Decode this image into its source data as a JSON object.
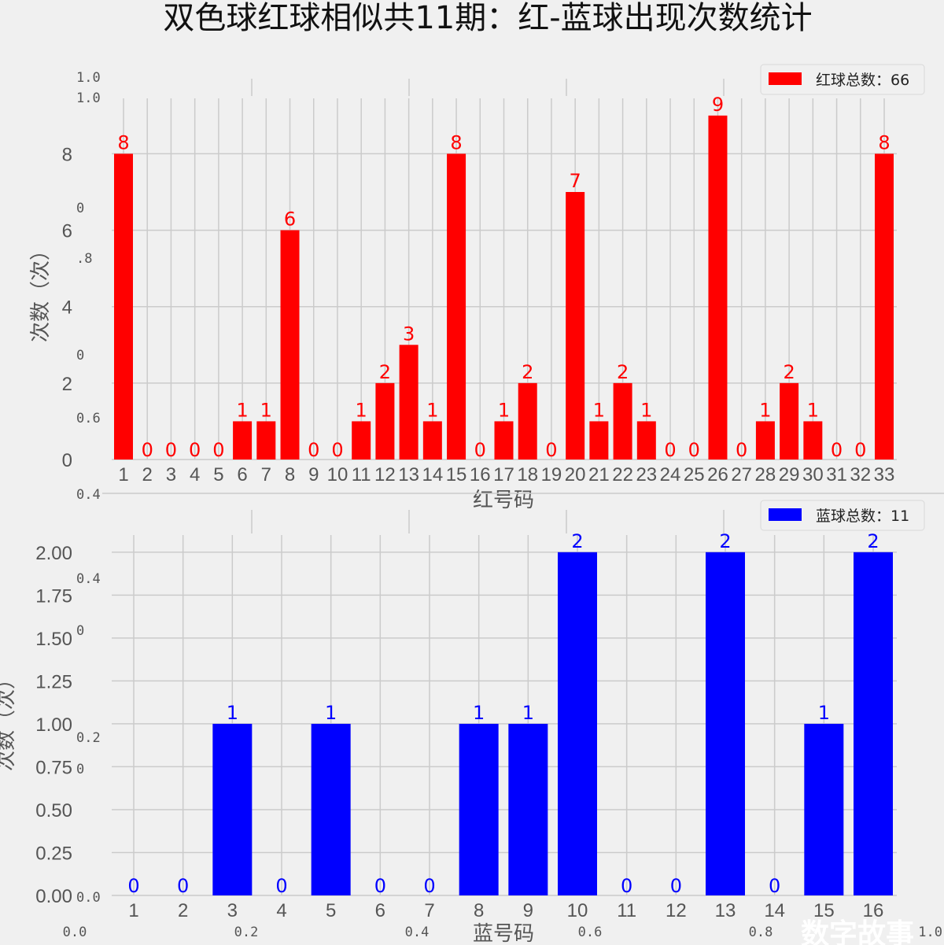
{
  "chart_data": [
    {
      "type": "bar",
      "title": "双色球红球相似共11期：红-蓝球出现次数统计",
      "xlabel": "红号码",
      "ylabel": "次数（次）",
      "categories": [
        "1",
        "2",
        "3",
        "4",
        "5",
        "6",
        "7",
        "8",
        "9",
        "10",
        "11",
        "12",
        "13",
        "14",
        "15",
        "16",
        "17",
        "18",
        "19",
        "20",
        "21",
        "22",
        "23",
        "24",
        "25",
        "26",
        "27",
        "28",
        "29",
        "30",
        "31",
        "32",
        "33"
      ],
      "values": [
        8,
        0,
        0,
        0,
        0,
        1,
        1,
        6,
        0,
        0,
        1,
        2,
        3,
        1,
        8,
        0,
        1,
        2,
        0,
        7,
        1,
        2,
        1,
        0,
        0,
        9,
        0,
        1,
        2,
        1,
        0,
        0,
        8
      ],
      "yticks": [
        "0",
        "2",
        "4",
        "6",
        "8"
      ],
      "ylim": [
        0,
        9.45
      ],
      "legend": "红球总数：66",
      "legend_position": "top-right",
      "color": "#ff0000",
      "grid": true
    },
    {
      "type": "bar",
      "xlabel": "蓝号码",
      "ylabel": "次数（次）",
      "categories": [
        "1",
        "2",
        "3",
        "4",
        "5",
        "6",
        "7",
        "8",
        "9",
        "10",
        "11",
        "12",
        "13",
        "14",
        "15",
        "16"
      ],
      "values": [
        0,
        0,
        1,
        0,
        1,
        0,
        0,
        1,
        1,
        2,
        0,
        0,
        2,
        0,
        1,
        2
      ],
      "yticks": [
        "0.00",
        "0.25",
        "0.50",
        "0.75",
        "1.00",
        "1.25",
        "1.50",
        "1.75",
        "2.00"
      ],
      "ylim": [
        0,
        2.1
      ],
      "legend": "蓝球总数：11",
      "legend_position": "top-right",
      "color": "#0000ff",
      "grid": true
    }
  ],
  "overlay_axis_ticks": {
    "left": [
      "1.0",
      "1.0",
      "0",
      ".8",
      "0",
      "0.6",
      "0.4",
      "0.4",
      "0",
      "0.2",
      "0",
      "0.0"
    ],
    "bottom": [
      "0.0",
      "0.2",
      "0.4",
      "0.6",
      "0.8",
      "1.0"
    ]
  },
  "watermark": "数字故事",
  "colors": {
    "background": "#f0f0f0",
    "grid": "#cbcbcb",
    "red": "#ff0000",
    "blue": "#0000ff"
  }
}
